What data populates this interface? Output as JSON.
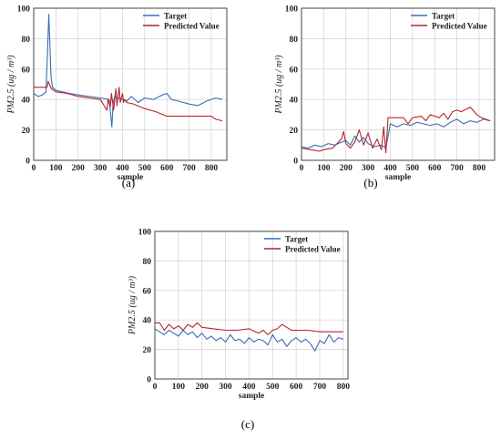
{
  "figure": {
    "labels": [
      "(a)",
      "(b)",
      "(c)"
    ]
  },
  "colors": {
    "target": "#3b6db3",
    "predicted": "#b2262b",
    "grid": "#d0d0d0",
    "axis": "#333333"
  },
  "chart_data": [
    {
      "type": "line",
      "panel": "(a)",
      "xlabel": "sample",
      "ylabel": "PM2.5 (ug / m³)",
      "xlim": [
        0,
        870
      ],
      "ylim": [
        0,
        100
      ],
      "xticks": [
        0,
        100,
        200,
        300,
        400,
        500,
        600,
        700,
        800
      ],
      "yticks": [
        0,
        20,
        40,
        60,
        80,
        100
      ],
      "grid": true,
      "legend": "top-right",
      "series": [
        {
          "name": "Target",
          "color_key": "target",
          "x": [
            0,
            20,
            40,
            55,
            62,
            68,
            72,
            78,
            85,
            100,
            130,
            160,
            200,
            250,
            300,
            340,
            352,
            358,
            365,
            380,
            400,
            420,
            440,
            470,
            500,
            540,
            580,
            600,
            620,
            650,
            700,
            740,
            780,
            820,
            850
          ],
          "y": [
            44,
            42,
            43,
            45,
            70,
            96,
            80,
            55,
            48,
            46,
            45,
            44,
            43,
            42,
            41,
            40,
            22,
            38,
            42,
            41,
            40,
            39,
            42,
            38,
            41,
            40,
            43,
            44,
            40,
            39,
            37,
            36,
            39,
            41,
            40
          ]
        },
        {
          "name": "Predicted Value",
          "color_key": "predicted",
          "x": [
            0,
            60,
            65,
            80,
            100,
            150,
            200,
            250,
            300,
            330,
            335,
            345,
            350,
            360,
            370,
            375,
            385,
            390,
            400,
            405,
            410,
            420,
            450,
            500,
            550,
            600,
            650,
            700,
            750,
            800,
            820,
            850
          ],
          "y": [
            48,
            48,
            52,
            47,
            45,
            44,
            42,
            41,
            40,
            33,
            40,
            35,
            44,
            33,
            47,
            36,
            48,
            38,
            44,
            38,
            40,
            38,
            37,
            34,
            32,
            29,
            29,
            29,
            29,
            29,
            27,
            26
          ]
        }
      ]
    },
    {
      "type": "line",
      "panel": "(b)",
      "xlabel": "sample",
      "ylabel": "PM2.5 (ug / m³)",
      "xlim": [
        0,
        870
      ],
      "ylim": [
        0,
        100
      ],
      "xticks": [
        0,
        100,
        200,
        300,
        400,
        500,
        600,
        700,
        800
      ],
      "yticks": [
        0,
        20,
        40,
        60,
        80,
        100
      ],
      "grid": true,
      "legend": "top-right",
      "series": [
        {
          "name": "Target",
          "color_key": "target",
          "x": [
            0,
            30,
            60,
            90,
            120,
            150,
            180,
            200,
            220,
            240,
            260,
            280,
            300,
            330,
            360,
            380,
            400,
            430,
            460,
            490,
            520,
            550,
            580,
            610,
            640,
            670,
            700,
            730,
            760,
            790,
            820,
            850
          ],
          "y": [
            9,
            8,
            10,
            9,
            11,
            10,
            12,
            13,
            10,
            16,
            12,
            15,
            11,
            9,
            10,
            8,
            24,
            22,
            24,
            23,
            25,
            24,
            23,
            24,
            22,
            25,
            27,
            24,
            26,
            25,
            27,
            26
          ]
        },
        {
          "name": "Predicted Value",
          "color_key": "predicted",
          "x": [
            0,
            40,
            80,
            100,
            140,
            180,
            190,
            200,
            220,
            240,
            260,
            280,
            300,
            320,
            340,
            360,
            370,
            380,
            390,
            400,
            420,
            460,
            480,
            500,
            540,
            560,
            580,
            620,
            640,
            660,
            680,
            700,
            720,
            760,
            790,
            810,
            850
          ],
          "y": [
            8,
            7,
            6,
            7,
            8,
            14,
            19,
            11,
            8,
            12,
            20,
            10,
            18,
            8,
            14,
            7,
            22,
            5,
            28,
            28,
            28,
            28,
            24,
            28,
            29,
            26,
            30,
            28,
            31,
            27,
            32,
            33,
            32,
            35,
            30,
            28,
            26
          ]
        }
      ]
    },
    {
      "type": "line",
      "panel": "(c)",
      "xlabel": "sample",
      "ylabel": "PM2.5 (ug / m³)",
      "xlim": [
        0,
        820
      ],
      "ylim": [
        0,
        100
      ],
      "xticks": [
        0,
        100,
        200,
        300,
        400,
        500,
        600,
        700,
        800
      ],
      "yticks": [
        0,
        20,
        40,
        60,
        80,
        100
      ],
      "grid": true,
      "legend": "top-right",
      "series": [
        {
          "name": "Target",
          "color_key": "target",
          "x": [
            0,
            20,
            40,
            60,
            80,
            100,
            120,
            140,
            160,
            180,
            200,
            220,
            240,
            260,
            280,
            300,
            320,
            340,
            360,
            380,
            400,
            420,
            440,
            460,
            480,
            500,
            520,
            540,
            560,
            580,
            600,
            620,
            640,
            660,
            680,
            700,
            720,
            740,
            760,
            780,
            800
          ],
          "y": [
            34,
            32,
            30,
            33,
            31,
            29,
            33,
            30,
            32,
            28,
            31,
            27,
            29,
            26,
            28,
            25,
            30,
            26,
            27,
            24,
            28,
            25,
            27,
            26,
            23,
            30,
            25,
            27,
            22,
            26,
            28,
            25,
            27,
            24,
            19,
            26,
            24,
            30,
            25,
            28,
            27
          ]
        },
        {
          "name": "Predicted Value",
          "color_key": "predicted",
          "x": [
            0,
            20,
            40,
            60,
            80,
            100,
            120,
            140,
            160,
            180,
            200,
            250,
            300,
            350,
            400,
            440,
            460,
            480,
            500,
            520,
            540,
            560,
            580,
            600,
            650,
            700,
            750,
            800
          ],
          "y": [
            38,
            38,
            33,
            37,
            34,
            36,
            33,
            37,
            35,
            38,
            35,
            34,
            33,
            33,
            34,
            31,
            33,
            30,
            33,
            34,
            37,
            35,
            33,
            33,
            33,
            32,
            32,
            32
          ]
        }
      ]
    }
  ]
}
